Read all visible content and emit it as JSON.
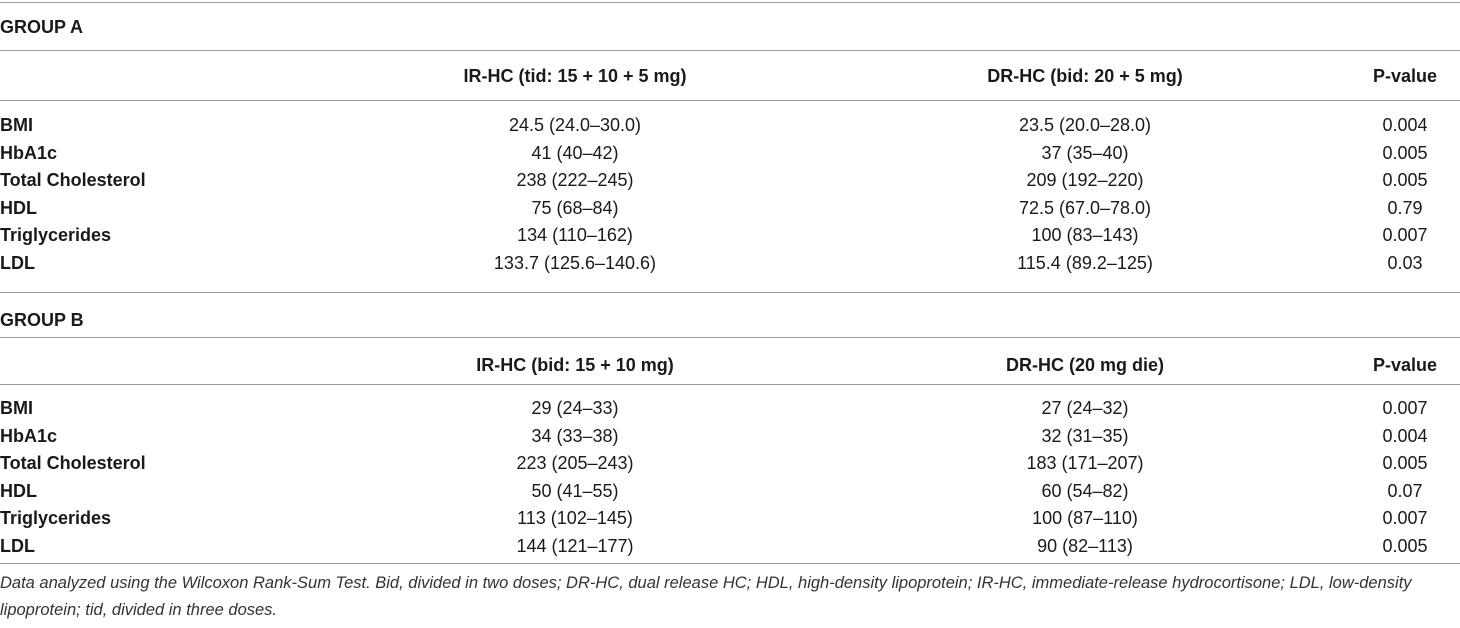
{
  "groups": [
    {
      "title": "GROUP A",
      "headers": [
        "IR-HC (tid: 15 + 10 + 5 mg)",
        "DR-HC (bid: 20 + 5 mg)",
        "P-value"
      ],
      "rows": [
        [
          "BMI",
          "24.5 (24.0–30.0)",
          "23.5 (20.0–28.0)",
          "0.004"
        ],
        [
          "HbA1c",
          "41 (40–42)",
          "37 (35–40)",
          "0.005"
        ],
        [
          "Total Cholesterol",
          "238 (222–245)",
          "209 (192–220)",
          "0.005"
        ],
        [
          "HDL",
          "75 (68–84)",
          "72.5 (67.0–78.0)",
          "0.79"
        ],
        [
          "Triglycerides",
          "134 (110–162)",
          "100 (83–143)",
          "0.007"
        ],
        [
          "LDL",
          "133.7 (125.6–140.6)",
          "115.4 (89.2–125)",
          "0.03"
        ]
      ]
    },
    {
      "title": "GROUP B",
      "headers": [
        "IR-HC (bid: 15 + 10 mg)",
        "DR-HC (20 mg die)",
        "P-value"
      ],
      "rows": [
        [
          "BMI",
          "29 (24–33)",
          "27 (24–32)",
          "0.007"
        ],
        [
          "HbA1c",
          "34 (33–38)",
          "32 (31–35)",
          "0.004"
        ],
        [
          "Total Cholesterol",
          "223 (205–243)",
          "183 (171–207)",
          "0.005"
        ],
        [
          "HDL",
          "50 (41–55)",
          "60 (54–82)",
          "0.07"
        ],
        [
          "Triglycerides",
          "113 (102–145)",
          "100 (87–110)",
          "0.007"
        ],
        [
          "LDL",
          "144 (121–177)",
          "90 (82–113)",
          "0.005"
        ]
      ]
    }
  ],
  "footnote": "Data analyzed using the Wilcoxon Rank-Sum Test. Bid, divided in two doses; DR-HC, dual release HC; HDL, high-density lipoprotein; IR-HC, immediate-release hydrocortisone; LDL, low-density lipoprotein; tid, divided in three doses."
}
